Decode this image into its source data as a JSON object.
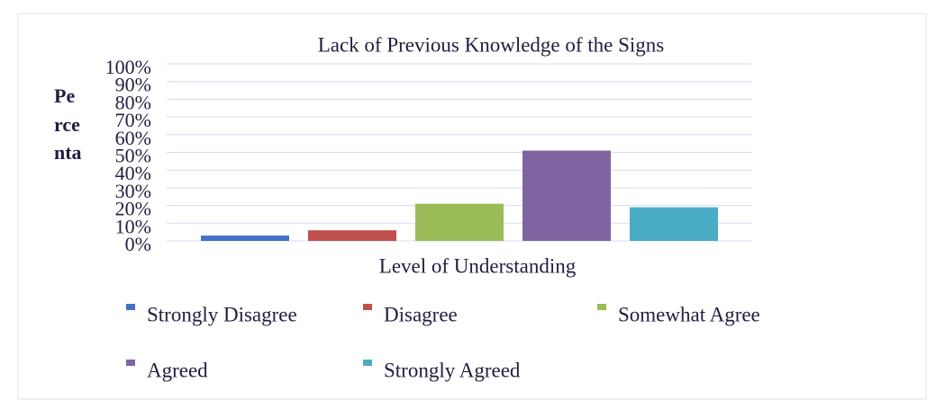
{
  "chart_data": {
    "type": "bar",
    "title": "Lack of Previous Knowledge of the Signs",
    "ylabel": [
      "Pe",
      "rce",
      "nta"
    ],
    "xlabel": "Level of Understanding",
    "categories": [
      null
    ],
    "series": [
      {
        "name": "Strongly Disagree",
        "color": "#4472c4",
        "values": [
          3
        ]
      },
      {
        "name": "Disagree",
        "color": "#c0504d",
        "values": [
          6
        ]
      },
      {
        "name": "Somewhat Agree",
        "color": "#9bbb59",
        "values": [
          21
        ]
      },
      {
        "name": "Agreed",
        "color": "#8064a2",
        "values": [
          51
        ]
      },
      {
        "name": "Strongly Agreed",
        "color": "#4bacc6",
        "values": [
          19
        ]
      }
    ],
    "ylim": [
      0,
      100
    ],
    "yticks": [
      {
        "value": 0,
        "label": "0%"
      },
      {
        "value": 10,
        "label": "10%"
      },
      {
        "value": 20,
        "label": "20%"
      },
      {
        "value": 30,
        "label": "30%"
      },
      {
        "value": 40,
        "label": "40%"
      },
      {
        "value": 50,
        "label": "50%"
      },
      {
        "value": 60,
        "label": "60%"
      },
      {
        "value": 70,
        "label": "70%"
      },
      {
        "value": 80,
        "label": "80%"
      },
      {
        "value": 90,
        "label": "90%"
      },
      {
        "value": 100,
        "label": "100%"
      }
    ],
    "grid": true,
    "legend": "bottom"
  }
}
